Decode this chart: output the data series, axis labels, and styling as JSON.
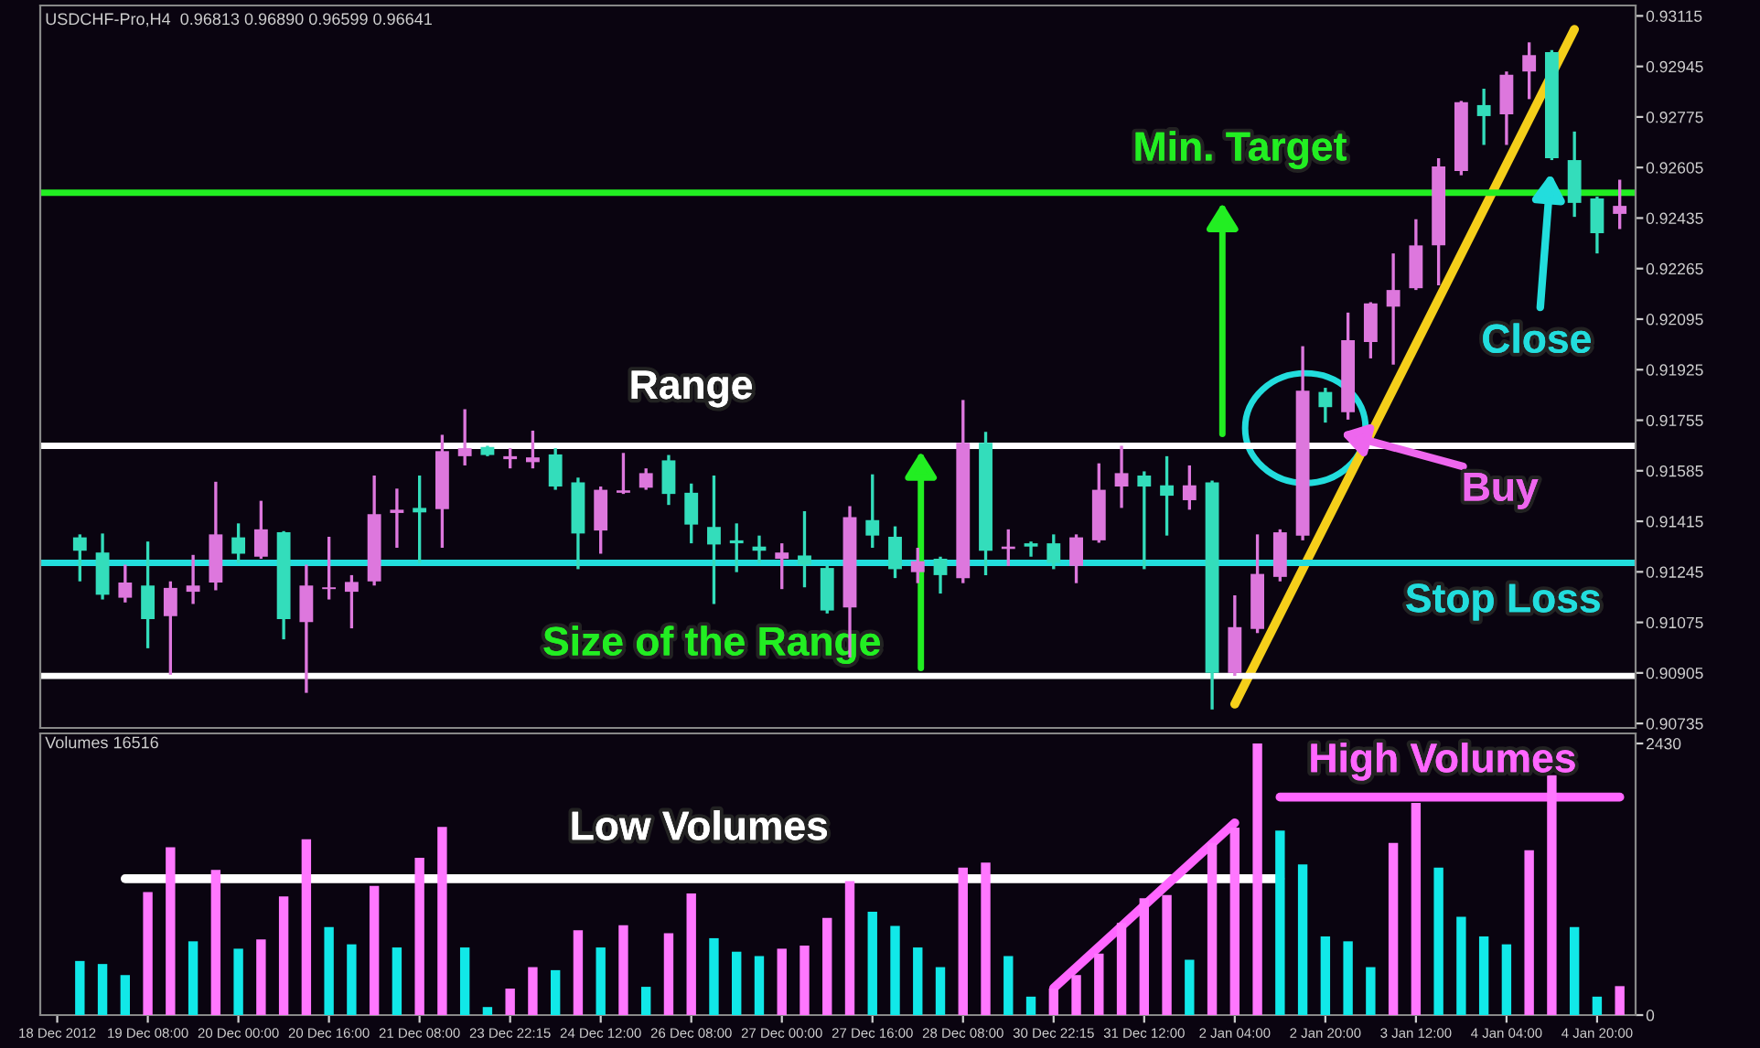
{
  "chart_data": [
    {
      "type": "candlestick",
      "title": "USDCHF-Pro,H4  0.96813 0.96890 0.96599 0.96641",
      "categories": [
        null,
        null,
        null,
        null,
        null,
        null,
        null,
        null,
        null,
        null,
        null,
        null,
        null,
        null,
        null,
        null,
        null,
        null,
        null,
        null,
        null,
        null,
        null,
        null,
        null,
        null,
        null,
        null,
        null,
        null,
        null,
        null,
        null,
        null,
        null,
        null,
        null,
        null,
        null,
        null,
        null,
        null,
        null,
        null,
        null,
        null,
        null,
        null,
        null,
        null,
        null,
        null,
        null,
        null,
        null,
        null,
        null,
        null,
        null,
        null,
        null,
        null,
        null,
        null,
        null,
        null,
        null,
        null,
        null,
        null
      ],
      "ohlc": [
        null,
        [
          0.91361,
          0.91371,
          0.91213,
          0.91316
        ],
        [
          0.9131,
          0.91374,
          0.91152,
          0.91168
        ],
        [
          0.91158,
          0.91269,
          0.91142,
          0.91209
        ],
        [
          0.91199,
          0.91347,
          0.90988,
          0.91086
        ],
        [
          0.91096,
          0.91213,
          0.90899,
          0.91191
        ],
        [
          0.91178,
          0.91302,
          0.91137,
          0.91199
        ],
        [
          0.91209,
          0.91548,
          0.91183,
          0.91371
        ],
        [
          0.91361,
          0.91408,
          0.91275,
          0.91306
        ],
        [
          0.91296,
          0.91484,
          0.91289,
          0.91388
        ],
        [
          0.91378,
          0.91382,
          0.91018,
          0.91086
        ],
        [
          0.91076,
          0.91269,
          0.90838,
          0.91199
        ],
        [
          0.91187,
          0.91363,
          0.91152,
          0.91193
        ],
        [
          0.91178,
          0.91234,
          0.91055,
          0.91211
        ],
        [
          0.91213,
          0.91569,
          0.91199,
          0.91439
        ],
        [
          0.91443,
          0.91525,
          0.91326,
          0.91454
        ],
        [
          0.9146,
          0.91569,
          0.91275,
          0.91445
        ],
        [
          0.91456,
          0.91706,
          0.91326,
          0.91651
        ],
        [
          0.91634,
          0.91792,
          0.91603,
          0.91661
        ],
        [
          0.91665,
          0.91669,
          0.91634,
          0.91638
        ],
        [
          0.91624,
          0.91661,
          0.91593,
          0.91634
        ],
        [
          0.91614,
          0.9172,
          0.91593,
          0.9163
        ],
        [
          0.9164,
          0.91661,
          0.91521,
          0.91532
        ],
        [
          0.91546,
          0.91562,
          0.91254,
          0.91374
        ],
        [
          0.91384,
          0.91532,
          0.91306,
          0.91521
        ],
        [
          0.91511,
          0.91645,
          0.91507,
          0.91519
        ],
        [
          0.91528,
          0.91593,
          0.91521,
          0.91577
        ],
        [
          0.9162,
          0.91638,
          0.9147,
          0.91507
        ],
        [
          0.91511,
          0.91542,
          0.91341,
          0.91404
        ],
        [
          0.91396,
          0.91569,
          0.91137,
          0.91337
        ],
        [
          0.91351,
          0.91408,
          0.91244,
          0.91341
        ],
        [
          0.9133,
          0.91367,
          0.91275,
          0.91316
        ],
        [
          0.91289,
          0.91341,
          0.91187,
          0.9131
        ],
        [
          0.913,
          0.91449,
          0.91193,
          0.91269
        ],
        [
          0.91258,
          0.91265,
          0.91105,
          0.91115
        ],
        [
          0.91125,
          0.91466,
          0.90957,
          0.91429
        ],
        [
          0.91419,
          0.91573,
          0.91326,
          0.91367
        ],
        [
          0.91363,
          0.91398,
          0.91224,
          0.91254
        ],
        [
          0.91244,
          0.91326,
          0.91207,
          0.91281
        ],
        [
          0.91289,
          0.91296,
          0.91172,
          0.91234
        ],
        [
          0.91224,
          0.91823,
          0.91207,
          0.91679
        ],
        [
          0.91679,
          0.91716,
          0.91234,
          0.91316
        ],
        [
          0.91322,
          0.91388,
          0.91265,
          0.9133
        ],
        [
          0.91341,
          0.91347,
          0.91296,
          0.9133
        ],
        [
          0.91341,
          0.91371,
          0.91254,
          0.91275
        ],
        [
          0.91265,
          0.91371,
          0.91207,
          0.91361
        ],
        [
          0.91351,
          0.9161,
          0.91343,
          0.91521
        ],
        [
          0.91532,
          0.91669,
          0.9146,
          0.91577
        ],
        [
          0.91569,
          0.91583,
          0.91254,
          0.91532
        ],
        [
          0.91536,
          0.91634,
          0.91367,
          0.91501
        ],
        [
          0.91486,
          0.91603,
          0.91454,
          0.91536
        ],
        [
          0.91546,
          0.91552,
          0.90782,
          0.90905
        ],
        [
          0.90905,
          0.91166,
          0.90895,
          0.91059
        ],
        [
          0.91053,
          0.91371,
          0.91039,
          0.91238
        ],
        [
          0.91228,
          0.91388,
          0.91213,
          0.91378
        ],
        [
          0.91367,
          0.92004,
          0.91351,
          0.91854
        ],
        [
          0.9185,
          0.91864,
          0.91747,
          0.91799
        ],
        [
          0.91782,
          0.92117,
          0.91757,
          0.92024
        ],
        [
          0.92018,
          0.92152,
          0.91963,
          0.92148
        ],
        [
          0.92137,
          0.92316,
          0.91942,
          0.92193
        ],
        [
          0.92199,
          0.92431,
          0.92193,
          0.92343
        ],
        [
          0.92343,
          0.92636,
          0.92209,
          0.92609
        ],
        [
          0.92593,
          0.92829,
          0.92579,
          0.92825
        ],
        [
          0.92815,
          0.9287,
          0.92681,
          0.92778
        ],
        [
          0.92784,
          0.92928,
          0.92681,
          0.92917
        ],
        [
          0.92928,
          0.93026,
          0.92835,
          0.92983
        ],
        [
          0.92993,
          0.93,
          0.9263,
          0.92636
        ],
        [
          0.9263,
          0.92726,
          0.92439,
          0.92486
        ],
        [
          0.92501,
          0.92507,
          0.92316,
          0.92384
        ],
        [
          0.92449,
          0.92564,
          0.92398,
          0.92476
        ]
      ],
      "colors": [
        null,
        "#33ddbb",
        "#33ddbb",
        "#dd77dd",
        "#33ddbb",
        "#dd77dd",
        "#dd77dd",
        "#dd77dd",
        "#33ddbb",
        "#dd77dd",
        "#33ddbb",
        "#dd77dd",
        "#dd77dd",
        "#dd77dd",
        "#dd77dd",
        "#dd77dd",
        "#33ddbb",
        "#dd77dd",
        "#dd77dd",
        "#33ddbb",
        "#dd77dd",
        "#dd77dd",
        "#33ddbb",
        "#33ddbb",
        "#dd77dd",
        "#dd77dd",
        "#dd77dd",
        "#33ddbb",
        "#33ddbb",
        "#33ddbb",
        "#33ddbb",
        "#33ddbb",
        "#dd77dd",
        "#33ddbb",
        "#33ddbb",
        "#dd77dd",
        "#33ddbb",
        "#33ddbb",
        "#dd77dd",
        "#33ddbb",
        "#dd77dd",
        "#33ddbb",
        "#dd77dd",
        "#33ddbb",
        "#33ddbb",
        "#dd77dd",
        "#dd77dd",
        "#dd77dd",
        "#33ddbb",
        "#33ddbb",
        "#dd77dd",
        "#33ddbb",
        "#dd77dd",
        "#dd77dd",
        "#dd77dd",
        "#dd77dd",
        "#33ddbb",
        "#dd77dd",
        "#dd77dd",
        "#dd77dd",
        "#dd77dd",
        "#dd77dd",
        "#dd77dd",
        "#33ddbb",
        "#dd77dd",
        "#dd77dd",
        "#33ddbb",
        "#33ddbb",
        "#33ddbb",
        "#dd77dd"
      ],
      "series": [
        {
          "type": "line",
          "values": [
            null,
            null,
            null,
            null,
            null,
            null,
            null,
            null,
            null,
            null,
            null,
            null,
            null,
            null,
            null,
            null,
            null,
            null,
            null,
            null,
            null,
            null,
            null,
            null,
            null,
            null,
            null,
            null,
            null,
            null,
            null,
            null,
            null,
            null,
            null,
            null,
            null,
            null,
            null,
            null,
            null,
            null,
            null,
            null,
            null,
            null,
            null,
            null,
            null,
            null,
            null,
            null,
            0.908,
            null,
            null,
            null,
            null,
            null,
            null,
            null,
            null,
            null,
            null,
            null,
            null,
            null,
            null,
            0.9307,
            null,
            null
          ],
          "color": "#f5cf1a"
        }
      ],
      "ylim": [
        0.9072,
        0.9315
      ],
      "yticks": [
        0.90735,
        0.90905,
        0.91075,
        0.91245,
        0.91415,
        0.91585,
        0.91755,
        0.91925,
        0.92095,
        0.92265,
        0.92435,
        0.92605,
        0.92775,
        0.92945,
        0.93115
      ],
      "ref_lines": [
        {
          "axis": "y",
          "value": 0.91669,
          "label": "Range",
          "color": "#ffffff"
        },
        {
          "axis": "y",
          "value": 0.90895,
          "label": null,
          "color": "#ffffff"
        },
        {
          "axis": "y",
          "value": 0.9252,
          "label": "Min. Target",
          "color": "#22ee22"
        },
        {
          "axis": "y",
          "value": 0.91275,
          "label": "Stop Loss",
          "color": "#22dddd"
        }
      ],
      "annotations": [
        "Size of the Range",
        "Buy",
        "Close"
      ],
      "tick_labels": "y",
      "grid": false,
      "legend": false
    },
    {
      "type": "bar",
      "title": "Volumes 16516",
      "categories": [
        "18 Dec 2012",
        null,
        null,
        null,
        "19 Dec 08:00",
        null,
        null,
        null,
        "20 Dec 00:00",
        null,
        null,
        null,
        "20 Dec 16:00",
        null,
        null,
        null,
        "21 Dec 08:00",
        null,
        null,
        null,
        "23 Dec 22:15",
        null,
        null,
        null,
        "24 Dec 12:00",
        null,
        null,
        null,
        "26 Dec 08:00",
        null,
        null,
        null,
        "27 Dec 00:00",
        null,
        null,
        null,
        "27 Dec 16:00",
        null,
        null,
        null,
        "28 Dec 08:00",
        null,
        null,
        null,
        "30 Dec 22:15",
        null,
        null,
        null,
        "31 Dec 12:00",
        null,
        null,
        null,
        "2 Jan 04:00",
        null,
        null,
        null,
        "2 Jan 20:00",
        null,
        null,
        null,
        "3 Jan 12:00",
        null,
        null,
        null,
        "4 Jan 04:00",
        null,
        null,
        null,
        "4 Jan 20:00",
        null
      ],
      "series": [
        {
          "type": "bar",
          "values": [
            null,
            484,
            457,
            358,
            1100,
            1502,
            660,
            1298,
            594,
            677,
            1062,
            1573,
            787,
            633,
            1155,
            605,
            1408,
            1683,
            605,
            72,
            237,
            429,
            402,
            759,
            605,
            803,
            253,
            732,
            1089,
            688,
            567,
            528,
            594,
            622,
            869,
            1199,
            924,
            798,
            605,
            429,
            1320,
            1364,
            528,
            165,
            237,
            358,
            550,
            825,
            1045,
            1073,
            495,
            1540,
            1678,
            2430,
            1650,
            1348,
            704,
            660,
            429,
            1540,
            1898,
            1320,
            880,
            704,
            633,
            1474,
            2145,
            787,
            165,
            259
          ],
          "colors": [
            null,
            "#11e8e8",
            "#11e8e8",
            "#11e8e8",
            "#ff77ff",
            "#ff77ff",
            "#11e8e8",
            "#ff77ff",
            "#11e8e8",
            "#ff77ff",
            "#ff77ff",
            "#ff77ff",
            "#11e8e8",
            "#11e8e8",
            "#ff77ff",
            "#11e8e8",
            "#ff77ff",
            "#ff77ff",
            "#11e8e8",
            "#11e8e8",
            "#ff77ff",
            "#ff77ff",
            "#11e8e8",
            "#ff77ff",
            "#11e8e8",
            "#ff77ff",
            "#11e8e8",
            "#ff77ff",
            "#ff77ff",
            "#11e8e8",
            "#11e8e8",
            "#11e8e8",
            "#ff77ff",
            "#ff77ff",
            "#ff77ff",
            "#ff77ff",
            "#11e8e8",
            "#11e8e8",
            "#11e8e8",
            "#11e8e8",
            "#ff77ff",
            "#ff77ff",
            "#11e8e8",
            "#11e8e8",
            "#ff77ff",
            "#ff77ff",
            "#ff77ff",
            "#ff77ff",
            "#ff77ff",
            "#ff77ff",
            "#11e8e8",
            "#ff77ff",
            "#ff77ff",
            "#ff77ff",
            "#11e8e8",
            "#11e8e8",
            "#11e8e8",
            "#11e8e8",
            "#11e8e8",
            "#ff77ff",
            "#ff77ff",
            "#11e8e8",
            "#11e8e8",
            "#11e8e8",
            "#11e8e8",
            "#ff77ff",
            "#ff77ff",
            "#11e8e8",
            "#11e8e8",
            "#ff77ff"
          ]
        },
        {
          "type": "line",
          "values": [
            null,
            null,
            null,
            1220,
            null,
            null,
            null,
            null,
            null,
            null,
            null,
            null,
            null,
            null,
            null,
            null,
            null,
            null,
            null,
            null,
            null,
            null,
            null,
            null,
            null,
            null,
            null,
            null,
            null,
            null,
            null,
            null,
            null,
            null,
            null,
            null,
            null,
            null,
            null,
            null,
            null,
            null,
            null,
            null,
            null,
            null,
            null,
            null,
            null,
            null,
            null,
            null,
            null,
            null,
            1220,
            null,
            null,
            null,
            null,
            null,
            null,
            null,
            null,
            null,
            null,
            null,
            null,
            null,
            null,
            null
          ],
          "color": "#ffffff"
        },
        {
          "type": "line",
          "values": [
            null,
            null,
            null,
            null,
            null,
            null,
            null,
            null,
            null,
            null,
            null,
            null,
            null,
            null,
            null,
            null,
            null,
            null,
            null,
            null,
            null,
            null,
            null,
            null,
            null,
            null,
            null,
            null,
            null,
            null,
            null,
            null,
            null,
            null,
            null,
            null,
            null,
            null,
            null,
            null,
            null,
            null,
            null,
            null,
            240,
            null,
            null,
            null,
            null,
            null,
            null,
            null,
            1720,
            null,
            null,
            null,
            null,
            null,
            null,
            null,
            null,
            null,
            null,
            null,
            null,
            null,
            null,
            null,
            null,
            null
          ],
          "color": "#ff66ff"
        },
        {
          "type": "line",
          "values": [
            null,
            null,
            null,
            null,
            null,
            null,
            null,
            null,
            null,
            null,
            null,
            null,
            null,
            null,
            null,
            null,
            null,
            null,
            null,
            null,
            null,
            null,
            null,
            null,
            null,
            null,
            null,
            null,
            null,
            null,
            null,
            null,
            null,
            null,
            null,
            null,
            null,
            null,
            null,
            null,
            null,
            null,
            null,
            null,
            null,
            null,
            null,
            null,
            null,
            null,
            null,
            null,
            null,
            null,
            1950,
            null,
            null,
            null,
            null,
            null,
            null,
            null,
            null,
            null,
            null,
            null,
            null,
            null,
            null,
            1950
          ],
          "color": "#ff66ff"
        }
      ],
      "ylim": [
        0,
        2520
      ],
      "yticks": [
        0,
        2430
      ],
      "annotations": [
        "Low Volumes",
        "High Volumes"
      ],
      "grid": false,
      "legend": false
    }
  ]
}
